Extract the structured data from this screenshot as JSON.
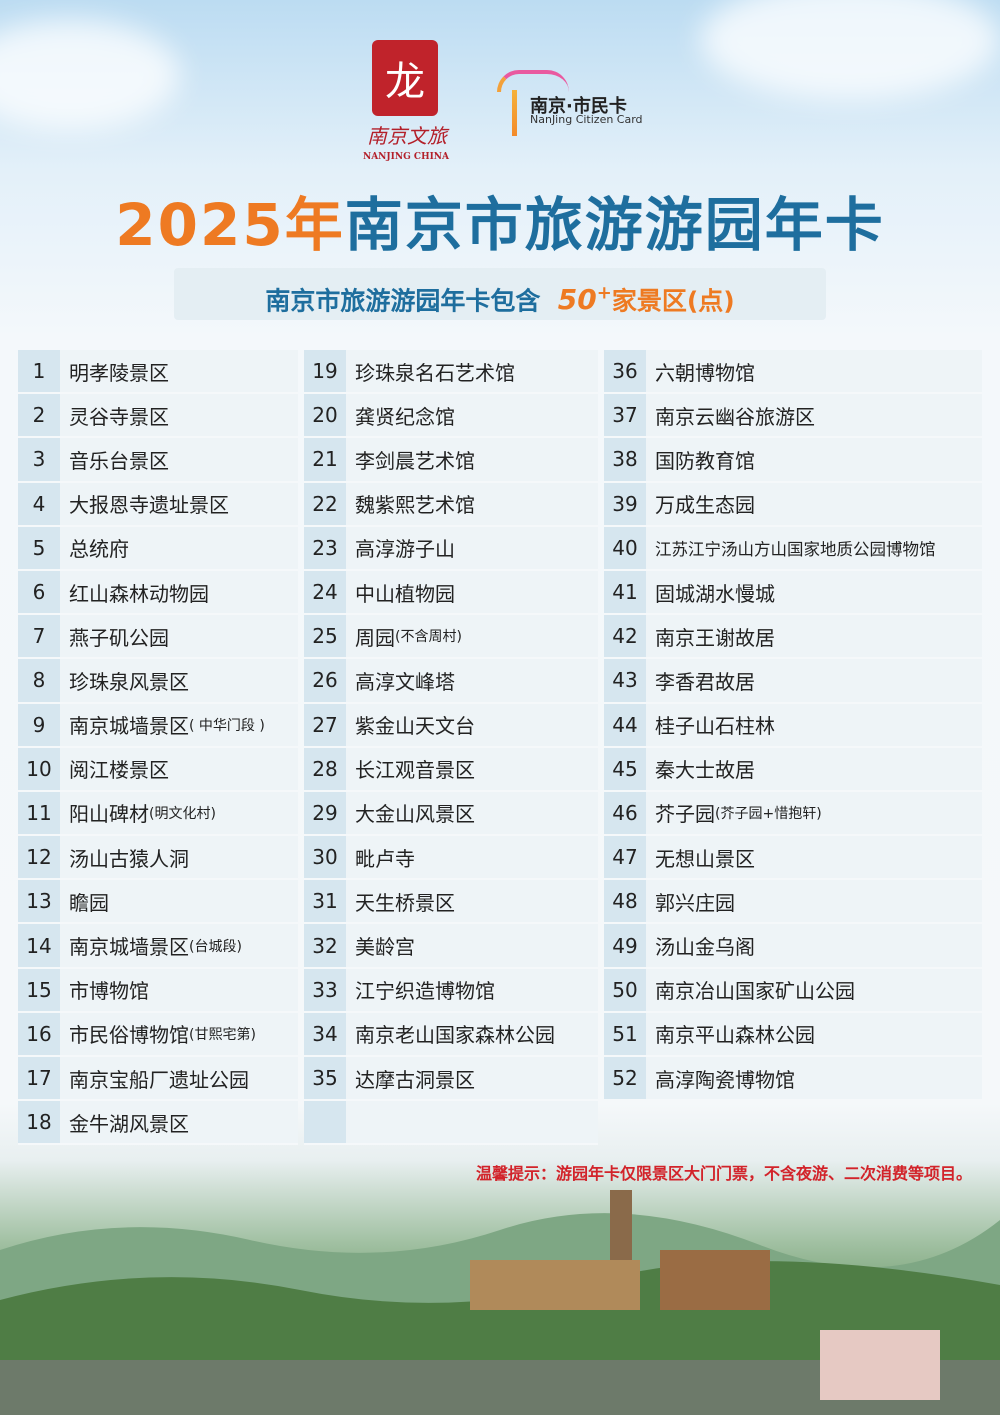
{
  "logos": {
    "culture_tourism": {
      "cn": "南京文旅",
      "en": "NANJING CHINA"
    },
    "citizen_card": {
      "cn": "南京·市民卡",
      "en": "NanJing Citizen Card"
    }
  },
  "title": {
    "year": "2025年",
    "main": "南京市旅游游园年卡"
  },
  "subtitle": {
    "prefix": "南京市旅游游园年卡包含",
    "count": "50",
    "plus": "+",
    "suffix": "家景区(点)"
  },
  "colors": {
    "orange": "#ee7a22",
    "blue": "#1e6e9e",
    "red": "#d2232a"
  },
  "columns": [
    [
      {
        "num": "1",
        "name": "明孝陵景区"
      },
      {
        "num": "2",
        "name": "灵谷寺景区"
      },
      {
        "num": "3",
        "name": "音乐台景区"
      },
      {
        "num": "4",
        "name": "大报恩寺遗址景区"
      },
      {
        "num": "5",
        "name": "总统府"
      },
      {
        "num": "6",
        "name": "红山森林动物园"
      },
      {
        "num": "7",
        "name": "燕子矶公园"
      },
      {
        "num": "8",
        "name": "珍珠泉风景区"
      },
      {
        "num": "9",
        "name": "南京城墙景区",
        "note": "( 中华门段 )"
      },
      {
        "num": "10",
        "name": "阅江楼景区"
      },
      {
        "num": "11",
        "name": "阳山碑材",
        "note": "(明文化村)"
      },
      {
        "num": "12",
        "name": "汤山古猿人洞"
      },
      {
        "num": "13",
        "name": "瞻园"
      },
      {
        "num": "14",
        "name": "南京城墙景区",
        "note": "(台城段)"
      },
      {
        "num": "15",
        "name": "市博物馆"
      },
      {
        "num": "16",
        "name": "市民俗博物馆",
        "note": "(甘熙宅第)"
      },
      {
        "num": "17",
        "name": "南京宝船厂遗址公园"
      },
      {
        "num": "18",
        "name": "金牛湖风景区"
      }
    ],
    [
      {
        "num": "19",
        "name": "珍珠泉名石艺术馆"
      },
      {
        "num": "20",
        "name": "龚贤纪念馆"
      },
      {
        "num": "21",
        "name": "李剑晨艺术馆"
      },
      {
        "num": "22",
        "name": "魏紫熙艺术馆"
      },
      {
        "num": "23",
        "name": "高淳游子山"
      },
      {
        "num": "24",
        "name": "中山植物园"
      },
      {
        "num": "25",
        "name": "周园",
        "note": "(不含周村)"
      },
      {
        "num": "26",
        "name": "高淳文峰塔"
      },
      {
        "num": "27",
        "name": "紫金山天文台"
      },
      {
        "num": "28",
        "name": "长江观音景区"
      },
      {
        "num": "29",
        "name": "大金山风景区"
      },
      {
        "num": "30",
        "name": "毗卢寺"
      },
      {
        "num": "31",
        "name": "天生桥景区"
      },
      {
        "num": "32",
        "name": "美龄宫"
      },
      {
        "num": "33",
        "name": "江宁织造博物馆"
      },
      {
        "num": "34",
        "name": "南京老山国家森林公园"
      },
      {
        "num": "35",
        "name": "达摩古洞景区"
      },
      {
        "num": "",
        "name": ""
      }
    ],
    [
      {
        "num": "36",
        "name": "六朝博物馆"
      },
      {
        "num": "37",
        "name": "南京云幽谷旅游区"
      },
      {
        "num": "38",
        "name": "国防教育馆"
      },
      {
        "num": "39",
        "name": "万成生态园"
      },
      {
        "num": "40",
        "name": "江苏江宁汤山方山国家地质公园博物馆",
        "small": true
      },
      {
        "num": "41",
        "name": "固城湖水慢城"
      },
      {
        "num": "42",
        "name": "南京王谢故居"
      },
      {
        "num": "43",
        "name": "李香君故居"
      },
      {
        "num": "44",
        "name": "桂子山石柱林"
      },
      {
        "num": "45",
        "name": "秦大士故居"
      },
      {
        "num": "46",
        "name": "芥子园",
        "note": "(芥子园+惜抱轩)"
      },
      {
        "num": "47",
        "name": "无想山景区"
      },
      {
        "num": "48",
        "name": "郭兴庄园"
      },
      {
        "num": "49",
        "name": "汤山金乌阁"
      },
      {
        "num": "50",
        "name": "南京冶山国家矿山公园"
      },
      {
        "num": "51",
        "name": "南京平山森林公园"
      },
      {
        "num": "52",
        "name": "高淳陶瓷博物馆"
      }
    ]
  ],
  "tip": "温馨提示：游园年卡仅限景区大门门票，不含夜游、二次消费等项目。"
}
